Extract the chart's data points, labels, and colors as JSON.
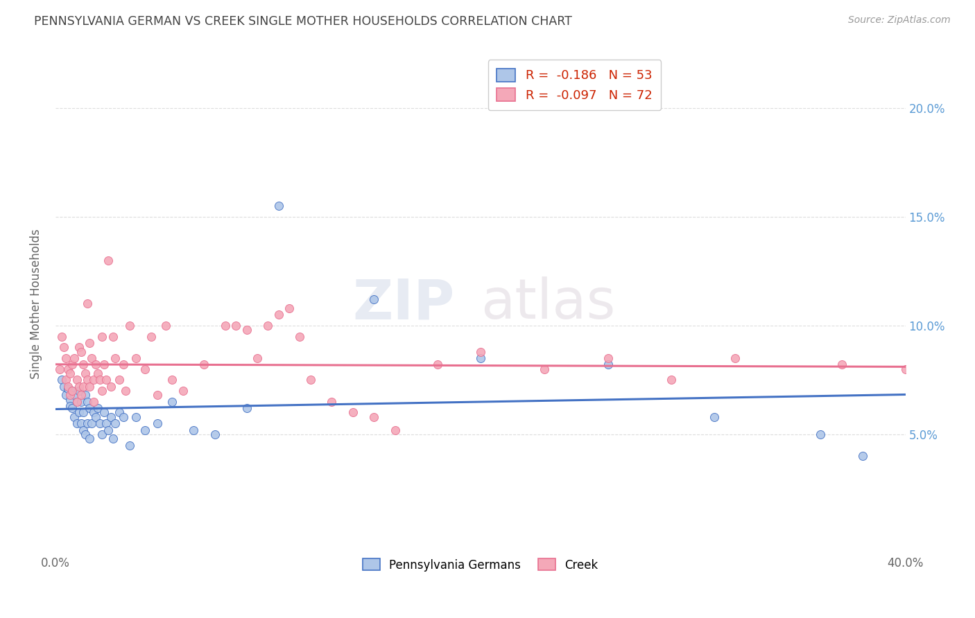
{
  "title": "PENNSYLVANIA GERMAN VS CREEK SINGLE MOTHER HOUSEHOLDS CORRELATION CHART",
  "source": "Source: ZipAtlas.com",
  "ylabel": "Single Mother Households",
  "xlim": [
    0.0,
    0.4
  ],
  "ylim": [
    -0.005,
    0.225
  ],
  "yticks": [
    0.05,
    0.1,
    0.15,
    0.2
  ],
  "ytick_labels": [
    "5.0%",
    "10.0%",
    "15.0%",
    "20.0%"
  ],
  "xticks": [
    0.0,
    0.1,
    0.2,
    0.3,
    0.4
  ],
  "xtick_labels": [
    "0.0%",
    "",
    "",
    "",
    "40.0%"
  ],
  "legend_entries": [
    {
      "label": "Pennsylvania Germans",
      "R": "-0.186",
      "N": "53"
    },
    {
      "label": "Creek",
      "R": "-0.097",
      "N": "72"
    }
  ],
  "watermark_zip": "ZIP",
  "watermark_atlas": "atlas",
  "background_color": "#ffffff",
  "grid_color": "#dddddd",
  "title_color": "#444444",
  "axis_label_color": "#666666",
  "right_tick_color": "#5b9bd5",
  "scatter_blue_color": "#aec6e8",
  "scatter_pink_color": "#f4a8b8",
  "line_blue_color": "#4472c4",
  "line_pink_color": "#e87090",
  "pa_german_x": [
    0.003,
    0.004,
    0.005,
    0.006,
    0.007,
    0.007,
    0.008,
    0.008,
    0.009,
    0.009,
    0.01,
    0.01,
    0.011,
    0.011,
    0.012,
    0.012,
    0.013,
    0.013,
    0.014,
    0.014,
    0.015,
    0.015,
    0.016,
    0.016,
    0.017,
    0.018,
    0.019,
    0.02,
    0.021,
    0.022,
    0.023,
    0.024,
    0.025,
    0.026,
    0.027,
    0.028,
    0.03,
    0.032,
    0.035,
    0.038,
    0.042,
    0.048,
    0.055,
    0.065,
    0.075,
    0.09,
    0.105,
    0.15,
    0.2,
    0.26,
    0.31,
    0.36,
    0.38
  ],
  "pa_german_y": [
    0.075,
    0.072,
    0.068,
    0.071,
    0.066,
    0.063,
    0.07,
    0.062,
    0.068,
    0.058,
    0.065,
    0.055,
    0.07,
    0.06,
    0.065,
    0.055,
    0.06,
    0.052,
    0.068,
    0.05,
    0.065,
    0.055,
    0.062,
    0.048,
    0.055,
    0.06,
    0.058,
    0.062,
    0.055,
    0.05,
    0.06,
    0.055,
    0.052,
    0.058,
    0.048,
    0.055,
    0.06,
    0.058,
    0.045,
    0.058,
    0.052,
    0.055,
    0.065,
    0.052,
    0.05,
    0.062,
    0.155,
    0.112,
    0.085,
    0.082,
    0.058,
    0.05,
    0.04
  ],
  "creek_x": [
    0.002,
    0.003,
    0.004,
    0.005,
    0.005,
    0.006,
    0.006,
    0.007,
    0.007,
    0.008,
    0.008,
    0.009,
    0.01,
    0.01,
    0.011,
    0.011,
    0.012,
    0.012,
    0.013,
    0.013,
    0.014,
    0.015,
    0.015,
    0.016,
    0.016,
    0.017,
    0.018,
    0.018,
    0.019,
    0.02,
    0.021,
    0.022,
    0.022,
    0.023,
    0.024,
    0.025,
    0.026,
    0.027,
    0.028,
    0.03,
    0.032,
    0.033,
    0.035,
    0.038,
    0.042,
    0.045,
    0.048,
    0.052,
    0.055,
    0.06,
    0.07,
    0.08,
    0.085,
    0.09,
    0.095,
    0.1,
    0.105,
    0.11,
    0.115,
    0.12,
    0.13,
    0.14,
    0.15,
    0.16,
    0.18,
    0.2,
    0.23,
    0.26,
    0.29,
    0.32,
    0.37,
    0.4
  ],
  "creek_y": [
    0.08,
    0.095,
    0.09,
    0.085,
    0.075,
    0.08,
    0.072,
    0.078,
    0.068,
    0.082,
    0.07,
    0.085,
    0.075,
    0.065,
    0.09,
    0.072,
    0.088,
    0.068,
    0.082,
    0.072,
    0.078,
    0.11,
    0.075,
    0.092,
    0.072,
    0.085,
    0.075,
    0.065,
    0.082,
    0.078,
    0.075,
    0.095,
    0.07,
    0.082,
    0.075,
    0.13,
    0.072,
    0.095,
    0.085,
    0.075,
    0.082,
    0.07,
    0.1,
    0.085,
    0.08,
    0.095,
    0.068,
    0.1,
    0.075,
    0.07,
    0.082,
    0.1,
    0.1,
    0.098,
    0.085,
    0.1,
    0.105,
    0.108,
    0.095,
    0.075,
    0.065,
    0.06,
    0.058,
    0.052,
    0.082,
    0.088,
    0.08,
    0.085,
    0.075,
    0.085,
    0.082,
    0.08
  ]
}
